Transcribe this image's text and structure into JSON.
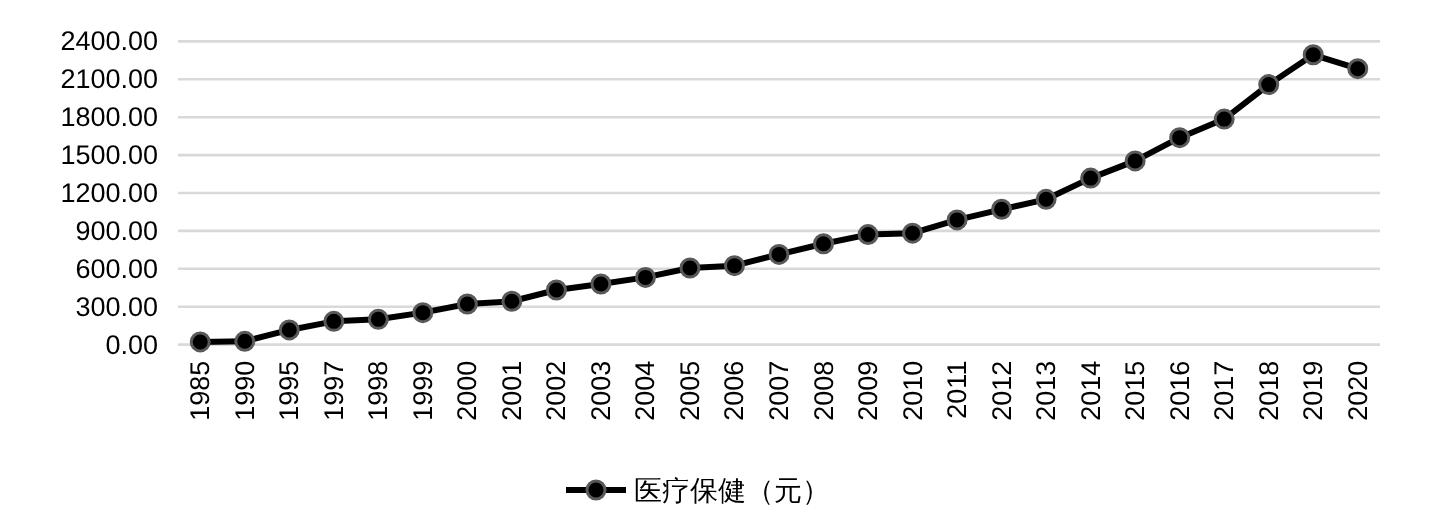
{
  "chart_data": {
    "type": "line",
    "categories": [
      "1985",
      "1990",
      "1995",
      "1997",
      "1998",
      "1999",
      "2000",
      "2001",
      "2002",
      "2003",
      "2004",
      "2005",
      "2006",
      "2007",
      "2008",
      "2009",
      "2010",
      "2011",
      "2012",
      "2013",
      "2014",
      "2015",
      "2016",
      "2017",
      "2018",
      "2019",
      "2020"
    ],
    "series": [
      {
        "name": "医疗保健（元）",
        "color": "#000000",
        "values": [
          21,
          26,
          116,
          184,
          200,
          253,
          321,
          343,
          432,
          480,
          532,
          606,
          625,
          714,
          798,
          871,
          882,
          987,
          1071,
          1150,
          1318,
          1454,
          1638,
          1785,
          2058,
          2294,
          2184
        ]
      }
    ],
    "ylim": [
      0,
      2400
    ],
    "yticks": [
      {
        "value": 0,
        "label": "0.00"
      },
      {
        "value": 300,
        "label": "300.00"
      },
      {
        "value": 600,
        "label": "600.00"
      },
      {
        "value": 900,
        "label": "900.00"
      },
      {
        "value": 1200,
        "label": "1200.00"
      },
      {
        "value": 1500,
        "label": "1500.00"
      },
      {
        "value": 1800,
        "label": "1800.00"
      },
      {
        "value": 2100,
        "label": "2100.00"
      },
      {
        "value": 2400,
        "label": "2400.00"
      }
    ],
    "grid": "y",
    "legend": "bottom",
    "marker": "circle",
    "line_style": "solid"
  }
}
